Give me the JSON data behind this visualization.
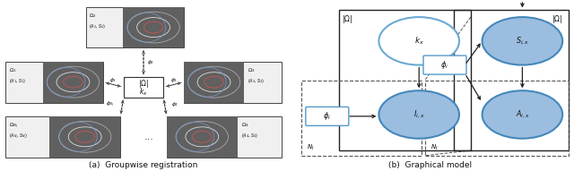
{
  "fig_width": 6.4,
  "fig_height": 1.91,
  "dpi": 100,
  "bg_color": "#ffffff",
  "caption_a": "(a)  Groupwise registration",
  "caption_b": "(b)  Graphical model",
  "node_fill_light": "#9bbde0",
  "node_fill_empty": "#ffffff",
  "node_edge_light": "#6aaad4",
  "node_edge_dark": "#4488bb",
  "phi_box_edge": "#5599cc",
  "phi_box_fill": "#ffffff",
  "solid_box_edge": "#333333",
  "dashed_box_edge": "#555555",
  "arrow_color": "#222222",
  "text_color": "#111111",
  "mri_dark": "#404040",
  "mri_mid": "#888888",
  "mri_light": "#bbbbbb"
}
